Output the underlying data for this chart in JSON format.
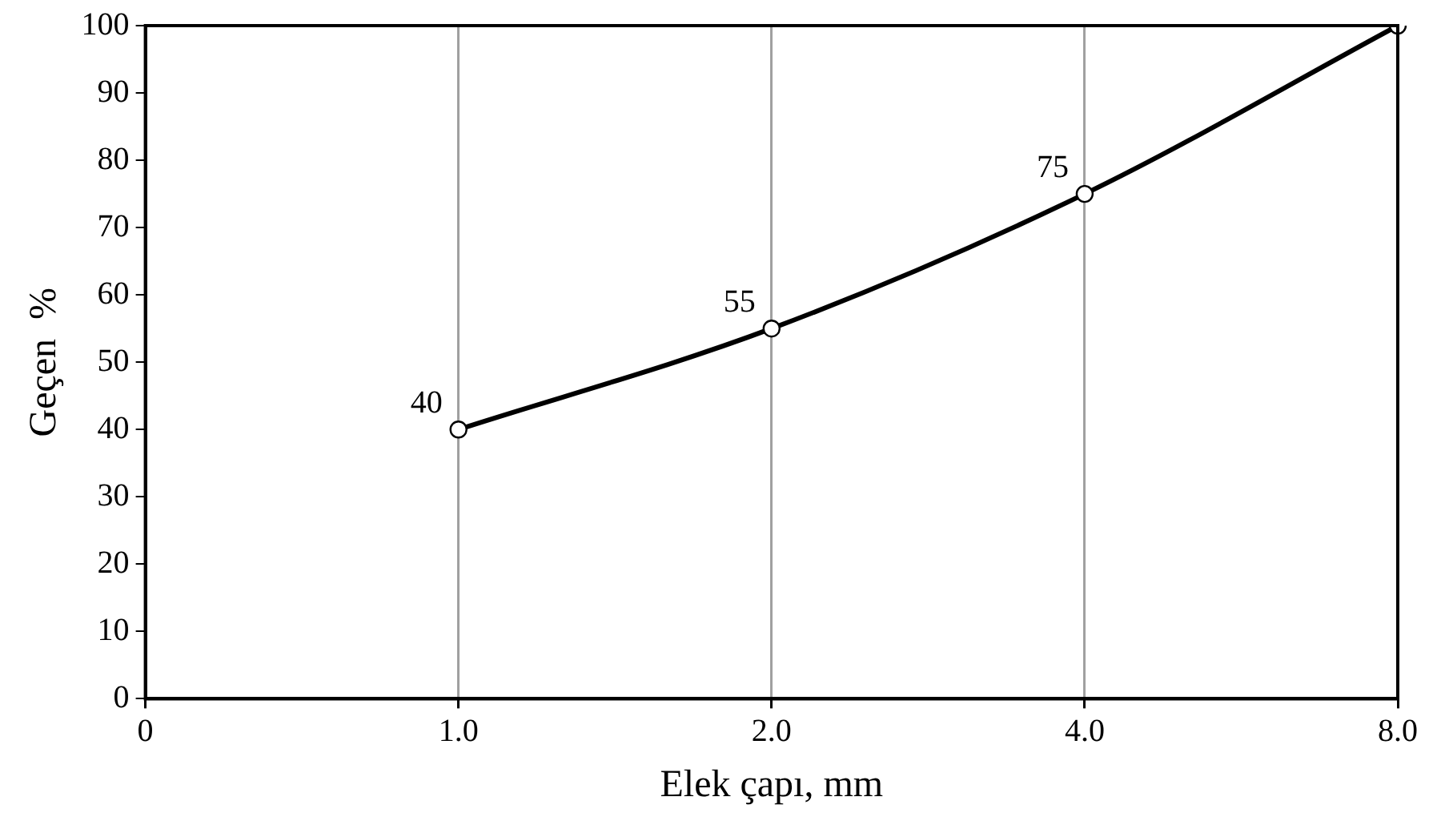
{
  "chart_data": {
    "type": "line",
    "xlabel": "Elek çapı, mm",
    "ylabel": "Geçen  %",
    "categories": [
      "0",
      "1.0",
      "2.0",
      "4.0",
      "8.0"
    ],
    "series": [
      {
        "color": "#000000",
        "values": [
          null,
          40,
          55,
          75,
          100
        ],
        "value_labels": [
          null,
          "40",
          "55",
          "75",
          null
        ]
      }
    ],
    "ylim": [
      0,
      100
    ],
    "yticks": [
      0,
      10,
      20,
      30,
      40,
      50,
      60,
      70,
      80,
      90,
      100
    ],
    "grid": "x",
    "marker": "circle",
    "line_style": "solid",
    "legend": false
  }
}
